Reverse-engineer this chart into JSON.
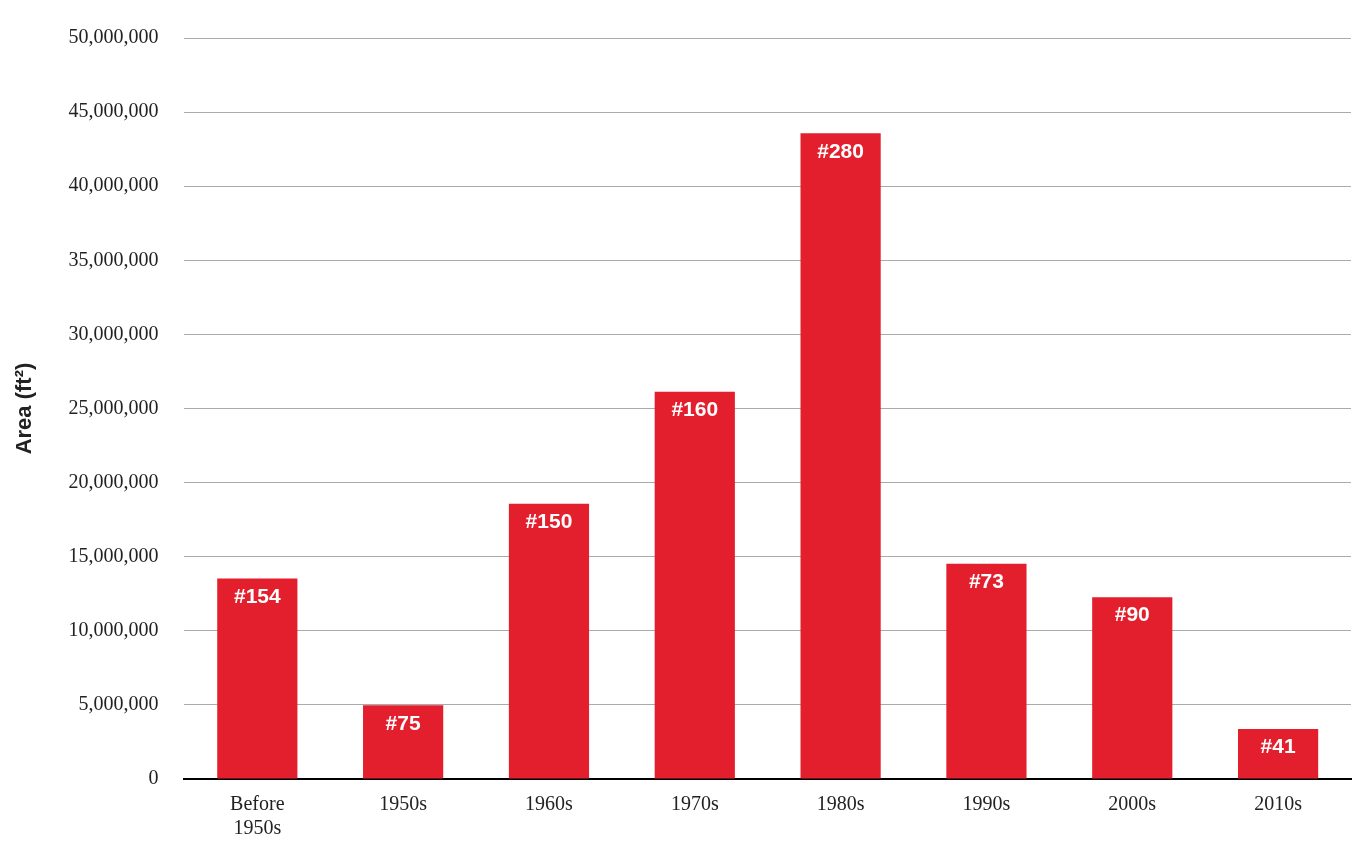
{
  "chart_data": {
    "type": "bar",
    "ylabel": "Area (ft²)",
    "categories": [
      "Before 1950s",
      "1950s",
      "1960s",
      "1970s",
      "1980s",
      "1990s",
      "2000s",
      "2010s"
    ],
    "values": [
      13530000,
      4970000,
      18570000,
      26130000,
      43570000,
      14520000,
      12270000,
      3380000
    ],
    "annotations": [
      {
        "text": "#154",
        "x": "Before 1950s",
        "y": 13530000
      },
      {
        "text": "#75",
        "x": "1950s",
        "y": 4970000
      },
      {
        "text": "#150",
        "x": "1960s",
        "y": 18570000
      },
      {
        "text": "#160",
        "x": "1970s",
        "y": 26130000
      },
      {
        "text": "#280",
        "x": "1980s",
        "y": 43570000
      },
      {
        "text": "#73",
        "x": "1990s",
        "y": 14520000
      },
      {
        "text": "#90",
        "x": "2000s",
        "y": 12270000
      },
      {
        "text": "#41",
        "x": "2010s",
        "y": 3380000
      }
    ],
    "color": "#e41f2d",
    "ylim": [
      0,
      50000000
    ],
    "yticks": [
      0,
      {
        "value": 5000000,
        "label": "5,000,000"
      },
      {
        "value": 10000000,
        "label": "10,000,000"
      },
      {
        "value": 15000000,
        "label": "15,000,000"
      },
      {
        "value": 20000000,
        "label": "20,000,000"
      },
      {
        "value": 25000000,
        "label": "25,000,000"
      },
      {
        "value": 30000000,
        "label": "30,000,000"
      },
      {
        "value": 35000000,
        "label": "35,000,000"
      },
      {
        "value": 40000000,
        "label": "40,000,000"
      },
      {
        "value": 45000000,
        "label": "45,000,000"
      },
      {
        "value": 50000000,
        "label": "50,000,000"
      }
    ],
    "grid": "y",
    "legend": false
  }
}
